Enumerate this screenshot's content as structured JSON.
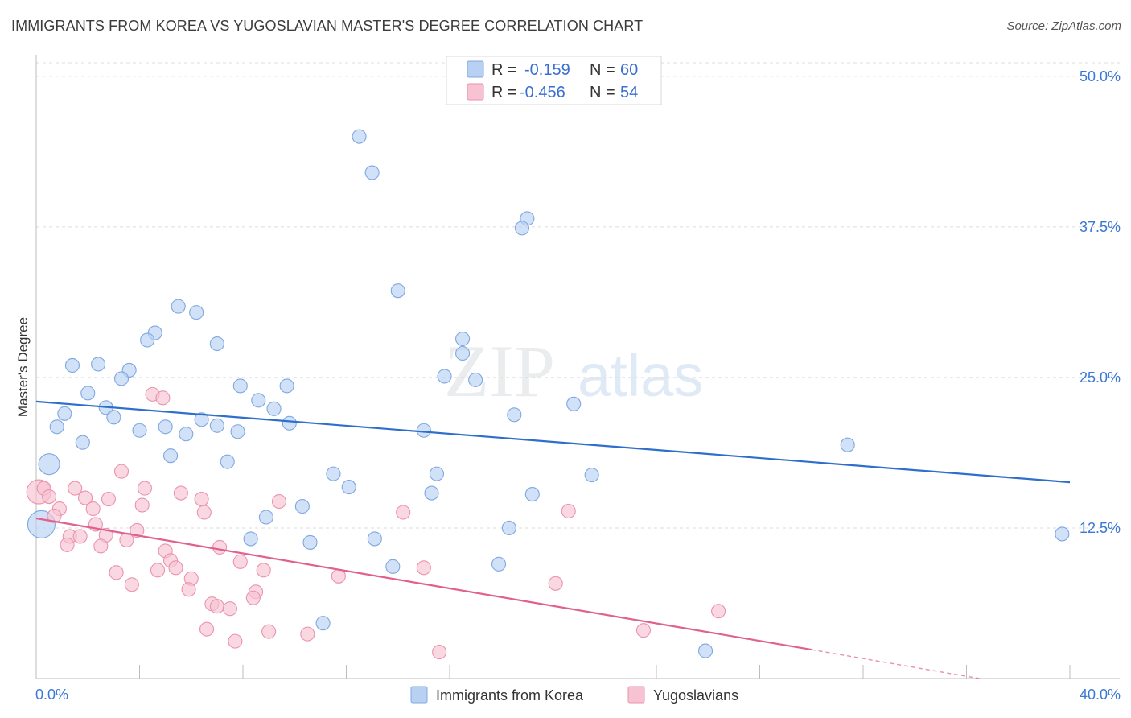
{
  "header": {
    "title": "IMMIGRANTS FROM KOREA VS YUGOSLAVIAN MASTER'S DEGREE CORRELATION CHART",
    "source": "Source: ZipAtlas.com"
  },
  "watermark": {
    "part1": "ZIP",
    "part2": "atlas"
  },
  "stats": [
    {
      "r_label": "R =",
      "r_value": "-0.159",
      "n_label": "N =",
      "n_value": "60",
      "color": "#b8d1f3"
    },
    {
      "r_label": "R =",
      "r_value": "-0.456",
      "n_label": "N =",
      "n_value": "54",
      "color": "#f7c3d3"
    }
  ],
  "chart_data": {
    "type": "scatter",
    "title": "IMMIGRANTS FROM KOREA VS YUGOSLAVIAN MASTER'S DEGREE CORRELATION CHART",
    "xlabel": "",
    "ylabel": "Master's Degree",
    "xlim": [
      0,
      40
    ],
    "ylim": [
      0,
      50
    ],
    "x_tick_labels": [
      "0.0%",
      "40.0%"
    ],
    "y_ticks": [
      12.5,
      25.0,
      37.5,
      50.0
    ],
    "y_tick_labels": [
      "12.5%",
      "25.0%",
      "37.5%",
      "50.0%"
    ],
    "grid": true,
    "legend_position": "bottom-center",
    "series": [
      {
        "name": "Immigrants from Korea",
        "color": "#b8d1f3",
        "stroke": "#7fa8e0",
        "trend_color": "#2f6fcc",
        "trend": {
          "x": [
            0,
            40
          ],
          "y": [
            23.0,
            16.3
          ]
        },
        "points": [
          {
            "x": 12.5,
            "y": 45.0
          },
          {
            "x": 13.0,
            "y": 42.0
          },
          {
            "x": 19.0,
            "y": 38.2
          },
          {
            "x": 18.8,
            "y": 37.4
          },
          {
            "x": 14.0,
            "y": 32.2
          },
          {
            "x": 5.5,
            "y": 30.9
          },
          {
            "x": 6.2,
            "y": 30.4
          },
          {
            "x": 4.6,
            "y": 28.7
          },
          {
            "x": 4.3,
            "y": 28.1
          },
          {
            "x": 7.0,
            "y": 27.8
          },
          {
            "x": 16.5,
            "y": 28.2
          },
          {
            "x": 16.5,
            "y": 27.0
          },
          {
            "x": 1.4,
            "y": 26.0
          },
          {
            "x": 2.4,
            "y": 26.1
          },
          {
            "x": 3.6,
            "y": 25.6
          },
          {
            "x": 3.3,
            "y": 24.9
          },
          {
            "x": 15.8,
            "y": 25.1
          },
          {
            "x": 17.0,
            "y": 24.8
          },
          {
            "x": 7.9,
            "y": 24.3
          },
          {
            "x": 9.7,
            "y": 24.3
          },
          {
            "x": 2.0,
            "y": 23.7
          },
          {
            "x": 8.6,
            "y": 23.1
          },
          {
            "x": 20.8,
            "y": 22.8
          },
          {
            "x": 2.7,
            "y": 22.5
          },
          {
            "x": 9.2,
            "y": 22.4
          },
          {
            "x": 1.1,
            "y": 22.0
          },
          {
            "x": 3.0,
            "y": 21.7
          },
          {
            "x": 18.5,
            "y": 21.9
          },
          {
            "x": 6.4,
            "y": 21.5
          },
          {
            "x": 7.0,
            "y": 21.0
          },
          {
            "x": 9.8,
            "y": 21.2
          },
          {
            "x": 0.8,
            "y": 20.9
          },
          {
            "x": 4.0,
            "y": 20.6
          },
          {
            "x": 5.0,
            "y": 20.9
          },
          {
            "x": 5.8,
            "y": 20.3
          },
          {
            "x": 7.8,
            "y": 20.5
          },
          {
            "x": 15.0,
            "y": 20.6
          },
          {
            "x": 1.8,
            "y": 19.6
          },
          {
            "x": 31.4,
            "y": 19.4
          },
          {
            "x": 5.2,
            "y": 18.5
          },
          {
            "x": 7.4,
            "y": 18.0
          },
          {
            "x": 0.5,
            "y": 17.8,
            "r": 13
          },
          {
            "x": 11.5,
            "y": 17.0
          },
          {
            "x": 15.5,
            "y": 17.0
          },
          {
            "x": 21.5,
            "y": 16.9
          },
          {
            "x": 12.1,
            "y": 15.9
          },
          {
            "x": 15.3,
            "y": 15.4
          },
          {
            "x": 19.2,
            "y": 15.3
          },
          {
            "x": 10.3,
            "y": 14.3
          },
          {
            "x": 8.9,
            "y": 13.4
          },
          {
            "x": 0.2,
            "y": 12.8,
            "r": 17
          },
          {
            "x": 18.3,
            "y": 12.5
          },
          {
            "x": 39.7,
            "y": 12.0
          },
          {
            "x": 8.3,
            "y": 11.6
          },
          {
            "x": 13.1,
            "y": 11.6
          },
          {
            "x": 10.6,
            "y": 11.3
          },
          {
            "x": 13.8,
            "y": 9.3
          },
          {
            "x": 17.9,
            "y": 9.5
          },
          {
            "x": 11.1,
            "y": 4.6
          },
          {
            "x": 25.9,
            "y": 2.3
          }
        ]
      },
      {
        "name": "Yugoslavians",
        "color": "#f7c3d3",
        "stroke": "#eb92b1",
        "trend_color": "#e0608f",
        "trend": {
          "x": [
            0,
            30
          ],
          "y": [
            13.3,
            2.4
          ]
        },
        "trend_dashed": {
          "x": [
            30,
            36.5
          ],
          "y": [
            2.4,
            0.0
          ]
        },
        "points": [
          {
            "x": 4.5,
            "y": 23.6
          },
          {
            "x": 4.9,
            "y": 23.3
          },
          {
            "x": 3.3,
            "y": 17.2
          },
          {
            "x": 0.1,
            "y": 15.5,
            "r": 15
          },
          {
            "x": 0.3,
            "y": 15.8
          },
          {
            "x": 1.5,
            "y": 15.8
          },
          {
            "x": 4.2,
            "y": 15.8
          },
          {
            "x": 5.6,
            "y": 15.4
          },
          {
            "x": 0.5,
            "y": 15.1
          },
          {
            "x": 1.9,
            "y": 15.0
          },
          {
            "x": 2.8,
            "y": 14.9
          },
          {
            "x": 6.4,
            "y": 14.9
          },
          {
            "x": 9.4,
            "y": 14.7
          },
          {
            "x": 4.1,
            "y": 14.4
          },
          {
            "x": 0.9,
            "y": 14.1
          },
          {
            "x": 2.2,
            "y": 14.1
          },
          {
            "x": 6.5,
            "y": 13.8
          },
          {
            "x": 14.2,
            "y": 13.8
          },
          {
            "x": 20.6,
            "y": 13.9
          },
          {
            "x": 0.7,
            "y": 13.5
          },
          {
            "x": 2.3,
            "y": 12.8
          },
          {
            "x": 3.9,
            "y": 12.3
          },
          {
            "x": 1.3,
            "y": 11.8
          },
          {
            "x": 1.7,
            "y": 11.8
          },
          {
            "x": 2.7,
            "y": 11.9
          },
          {
            "x": 3.5,
            "y": 11.5
          },
          {
            "x": 1.2,
            "y": 11.1
          },
          {
            "x": 2.5,
            "y": 11.0
          },
          {
            "x": 7.1,
            "y": 10.9
          },
          {
            "x": 5.0,
            "y": 10.6
          },
          {
            "x": 5.2,
            "y": 9.8
          },
          {
            "x": 7.9,
            "y": 9.7
          },
          {
            "x": 5.4,
            "y": 9.2
          },
          {
            "x": 4.7,
            "y": 9.0
          },
          {
            "x": 8.8,
            "y": 9.0
          },
          {
            "x": 15.0,
            "y": 9.2
          },
          {
            "x": 3.1,
            "y": 8.8
          },
          {
            "x": 11.7,
            "y": 8.5
          },
          {
            "x": 6.0,
            "y": 8.3
          },
          {
            "x": 20.1,
            "y": 7.9
          },
          {
            "x": 3.7,
            "y": 7.8
          },
          {
            "x": 5.9,
            "y": 7.4
          },
          {
            "x": 8.5,
            "y": 7.2
          },
          {
            "x": 8.4,
            "y": 6.7
          },
          {
            "x": 6.8,
            "y": 6.2
          },
          {
            "x": 7.0,
            "y": 6.0
          },
          {
            "x": 7.5,
            "y": 5.8
          },
          {
            "x": 26.4,
            "y": 5.6
          },
          {
            "x": 6.6,
            "y": 4.1
          },
          {
            "x": 9.0,
            "y": 3.9
          },
          {
            "x": 10.5,
            "y": 3.7
          },
          {
            "x": 23.5,
            "y": 4.0
          },
          {
            "x": 7.7,
            "y": 3.1
          },
          {
            "x": 15.6,
            "y": 2.2
          }
        ]
      }
    ]
  }
}
